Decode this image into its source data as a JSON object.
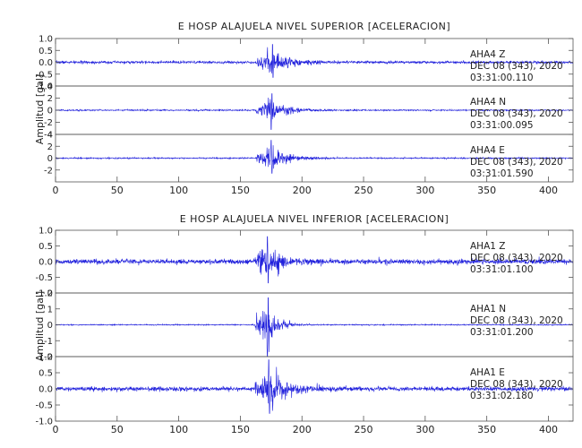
{
  "chart_data": [
    {
      "type": "line",
      "title": "E HOSP ALAJUELA NIVEL SUPERIOR [ACELERACION]",
      "ylabel": "Amplitud [gal]",
      "xlabel": "",
      "xlim": [
        0,
        420
      ],
      "x_ticks": [
        "0",
        "50",
        "100",
        "150",
        "200",
        "250",
        "300",
        "350",
        "400"
      ],
      "grid": false,
      "series_color": "#1f1fdc",
      "panels": [
        {
          "ylim": [
            -1.0,
            1.0
          ],
          "y_ticks": [
            "1.0",
            "0.5",
            "0.0",
            "-0.5",
            "-1.0"
          ],
          "tick_values": [
            1.0,
            0.5,
            0.0,
            -0.5,
            -1.0
          ],
          "station": "AHA4   Z",
          "date": "DEC 08 (343), 2020",
          "time": "03:31:00.110",
          "signal": {
            "onset": 163,
            "peak_time": 176,
            "peak_amp": 0.75,
            "noise": 0.05,
            "decay": 14
          }
        },
        {
          "ylim": [
            -4,
            4
          ],
          "y_ticks": [
            "4",
            "2",
            "0",
            "-2",
            "-4"
          ],
          "tick_values": [
            4,
            2,
            0,
            -2,
            -4
          ],
          "station": "AHA4   N",
          "date": "DEC 08 (343), 2020",
          "time": "03:31:00.095",
          "signal": {
            "onset": 163,
            "peak_time": 175,
            "peak_amp": 3.2,
            "noise": 0.1,
            "decay": 12
          }
        },
        {
          "ylim": [
            -4,
            4
          ],
          "y_ticks": [
            "4",
            "2",
            "0",
            "-2"
          ],
          "tick_values": [
            4,
            2,
            0,
            -2
          ],
          "station": "AHA4   E",
          "date": "DEC 08 (343), 2020",
          "time": "03:31:01.590",
          "signal": {
            "onset": 163,
            "peak_time": 175,
            "peak_amp": 3.0,
            "noise": 0.1,
            "decay": 13
          }
        }
      ]
    },
    {
      "type": "line",
      "title": "E HOSP ALAJUELA NIVEL INFERIOR [ACELERACION]",
      "ylabel": "Amplitud [gal]",
      "xlabel": "",
      "xlim": [
        0,
        420
      ],
      "x_ticks": [
        "0",
        "50",
        "100",
        "150",
        "200",
        "250",
        "300",
        "350",
        "400"
      ],
      "grid": false,
      "series_color": "#1f1fdc",
      "panels": [
        {
          "ylim": [
            -1.0,
            1.0
          ],
          "y_ticks": [
            "1.0",
            "0.5",
            "0.0",
            "-0.5",
            "-1.0"
          ],
          "tick_values": [
            1.0,
            0.5,
            0.0,
            -0.5,
            -1.0
          ],
          "station": "AHA1   Z",
          "date": "DEC 08 (343), 2020",
          "time": "03:31:01.100",
          "signal": {
            "onset": 162,
            "peak_time": 172,
            "peak_amp": 0.8,
            "noise": 0.07,
            "decay": 14
          }
        },
        {
          "ylim": [
            -2,
            2
          ],
          "y_ticks": [
            "2",
            "1",
            "0",
            "-1",
            "-2"
          ],
          "tick_values": [
            2,
            1,
            0,
            -1,
            -2
          ],
          "station": "AHA1   N",
          "date": "DEC 08 (343), 2020",
          "time": "03:31:01.200",
          "signal": {
            "onset": 162,
            "peak_time": 172,
            "peak_amp": 2.0,
            "noise": 0.03,
            "decay": 8
          }
        },
        {
          "ylim": [
            -1.0,
            1.0
          ],
          "y_ticks": [
            "1.0",
            "0.5",
            "0.0",
            "-0.5",
            "-1.0"
          ],
          "tick_values": [
            1.0,
            0.5,
            0.0,
            -0.5,
            -1.0
          ],
          "station": "AHA1   E",
          "date": "DEC 08 (343), 2020",
          "time": "03:31:02.180",
          "signal": {
            "onset": 162,
            "peak_time": 173,
            "peak_amp": 0.9,
            "noise": 0.06,
            "decay": 13
          }
        }
      ]
    }
  ]
}
